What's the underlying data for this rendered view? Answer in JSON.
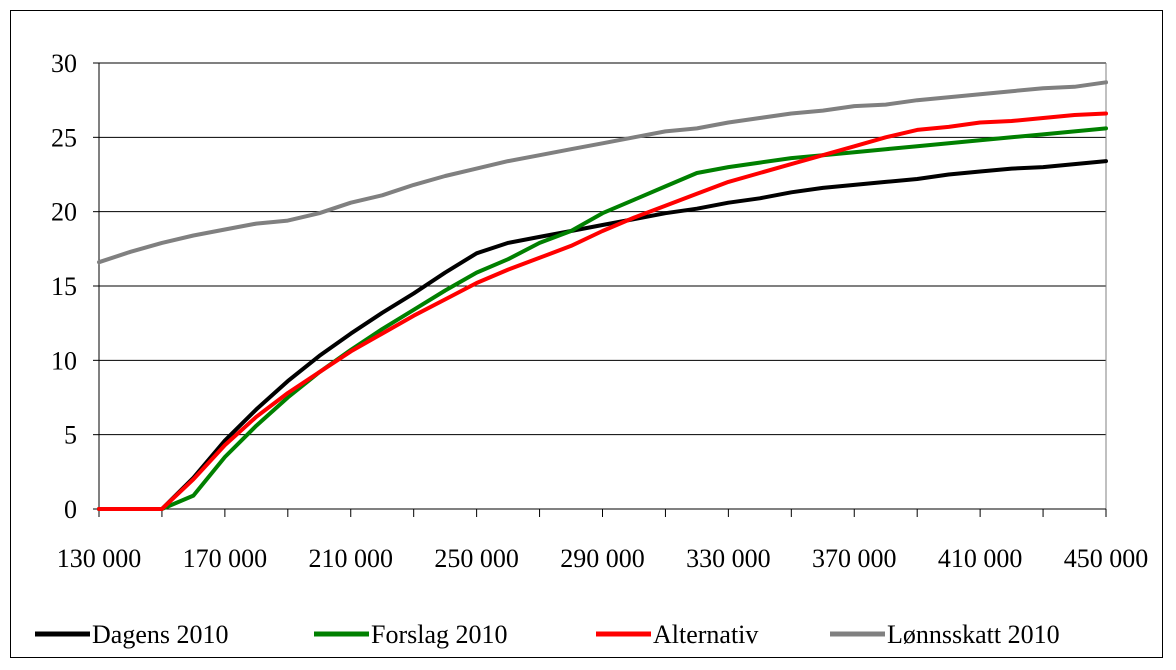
{
  "chart_data": {
    "type": "line",
    "title": "",
    "xlabel": "",
    "ylabel": "",
    "ylim": [
      0,
      30
    ],
    "xlim": [
      130000,
      450000
    ],
    "y_ticks": [
      0,
      5,
      10,
      15,
      20,
      25,
      30
    ],
    "y_tick_labels": [
      "0",
      "5",
      "10",
      "15",
      "20",
      "25",
      "30"
    ],
    "x_tick_labels": [
      "130 000",
      "170 000",
      "210 000",
      "250 000",
      "290 000",
      "330 000",
      "370 000",
      "410 000",
      "450 000"
    ],
    "x_label_values": [
      130000,
      170000,
      210000,
      250000,
      290000,
      330000,
      370000,
      410000,
      450000
    ],
    "x_minor_ticks": [
      130000,
      150000,
      170000,
      190000,
      210000,
      230000,
      250000,
      270000,
      290000,
      310000,
      330000,
      350000,
      370000,
      390000,
      410000,
      430000,
      450000
    ],
    "grid": true,
    "legend_position": "bottom",
    "x": [
      130000,
      140000,
      150000,
      160000,
      170000,
      180000,
      190000,
      200000,
      210000,
      220000,
      230000,
      240000,
      250000,
      260000,
      270000,
      280000,
      290000,
      300000,
      310000,
      320000,
      330000,
      340000,
      350000,
      360000,
      370000,
      380000,
      390000,
      400000,
      410000,
      420000,
      430000,
      440000,
      450000
    ],
    "series": [
      {
        "name": "Dagens 2010",
        "color": "#000000",
        "values": [
          0,
          0,
          0,
          2.1,
          4.6,
          6.7,
          8.6,
          10.3,
          11.8,
          13.2,
          14.5,
          15.9,
          17.2,
          17.9,
          18.3,
          18.7,
          19.1,
          19.5,
          19.9,
          20.2,
          20.6,
          20.9,
          21.3,
          21.6,
          21.8,
          22.0,
          22.2,
          22.5,
          22.7,
          22.9,
          23.0,
          23.2,
          23.4
        ]
      },
      {
        "name": "Forslag 2010",
        "color": "#008000",
        "values": [
          0,
          0,
          0,
          0.9,
          3.5,
          5.6,
          7.5,
          9.2,
          10.7,
          12.1,
          13.4,
          14.7,
          15.9,
          16.8,
          17.9,
          18.7,
          19.9,
          20.8,
          21.7,
          22.6,
          23.0,
          23.3,
          23.6,
          23.8,
          24.0,
          24.2,
          24.4,
          24.6,
          24.8,
          25.0,
          25.2,
          25.4,
          25.6
        ]
      },
      {
        "name": "Alternativ",
        "color": "#ff0000",
        "values": [
          0,
          0,
          0,
          2.0,
          4.3,
          6.2,
          7.8,
          9.2,
          10.6,
          11.8,
          13.0,
          14.1,
          15.2,
          16.1,
          16.9,
          17.7,
          18.7,
          19.6,
          20.4,
          21.2,
          22.0,
          22.6,
          23.2,
          23.8,
          24.4,
          25.0,
          25.5,
          25.7,
          26.0,
          26.1,
          26.3,
          26.5,
          26.6
        ]
      },
      {
        "name": "Lønnsskatt 2010",
        "color": "#808080",
        "values": [
          16.6,
          17.3,
          17.9,
          18.4,
          18.8,
          19.2,
          19.4,
          19.9,
          20.6,
          21.1,
          21.8,
          22.4,
          22.9,
          23.4,
          23.8,
          24.2,
          24.6,
          25.0,
          25.4,
          25.6,
          26.0,
          26.3,
          26.6,
          26.8,
          27.1,
          27.2,
          27.5,
          27.7,
          27.9,
          28.1,
          28.3,
          28.4,
          28.7
        ]
      }
    ]
  }
}
